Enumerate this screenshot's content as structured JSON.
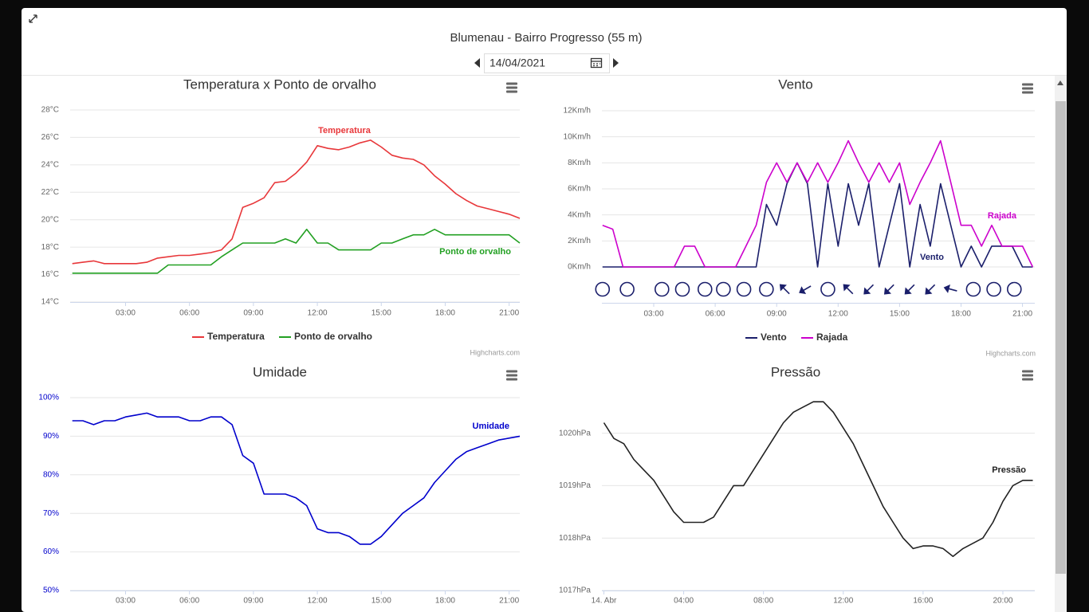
{
  "header": {
    "title": "Blumenau - Bairro Progresso (55 m)",
    "date": "14/04/2021"
  },
  "chart_data": [
    {
      "type": "line",
      "title": "Temperatura x Ponto de orvalho",
      "legend": true,
      "credits": "Highcharts.com",
      "xlim": [
        0.4,
        21.5
      ],
      "ylim": [
        14,
        28
      ],
      "grid": true,
      "xticks": [
        {
          "value": 3,
          "label": "03:00"
        },
        {
          "value": 6,
          "label": "06:00"
        },
        {
          "value": 9,
          "label": "09:00"
        },
        {
          "value": 12,
          "label": "12:00"
        },
        {
          "value": 15,
          "label": "15:00"
        },
        {
          "value": 18,
          "label": "18:00"
        },
        {
          "value": 21,
          "label": "21:00"
        }
      ],
      "yticks": [
        {
          "value": 14,
          "label": "14°C"
        },
        {
          "value": 16,
          "label": "16°C"
        },
        {
          "value": 18,
          "label": "18°C"
        },
        {
          "value": 20,
          "label": "20°C"
        },
        {
          "value": 22,
          "label": "22°C"
        },
        {
          "value": 24,
          "label": "24°C"
        },
        {
          "value": 26,
          "label": "26°C"
        },
        {
          "value": 28,
          "label": "28°C"
        }
      ],
      "x": [
        0.5,
        1,
        1.5,
        2,
        2.5,
        3,
        3.5,
        4,
        4.5,
        5,
        5.5,
        6,
        6.5,
        7,
        7.5,
        8,
        8.5,
        9,
        9.5,
        10,
        10.5,
        11,
        11.5,
        12,
        12.5,
        13,
        13.5,
        14,
        14.5,
        15,
        15.5,
        16,
        16.5,
        17,
        17.5,
        18,
        18.5,
        19,
        19.5,
        20,
        20.5,
        21,
        21.5
      ],
      "series": [
        {
          "name": "Temperatura",
          "color": "#e8373a",
          "values": [
            16.8,
            16.9,
            17.0,
            16.8,
            16.8,
            16.8,
            16.8,
            16.9,
            17.2,
            17.3,
            17.4,
            17.4,
            17.5,
            17.6,
            17.8,
            18.6,
            20.9,
            21.2,
            21.6,
            22.7,
            22.8,
            23.4,
            24.2,
            25.4,
            25.2,
            25.1,
            25.3,
            25.6,
            25.8,
            25.3,
            24.7,
            24.5,
            24.4,
            24.0,
            23.2,
            22.6,
            21.9,
            21.4,
            21.0,
            20.8,
            20.6,
            20.4,
            20.1
          ]
        },
        {
          "name": "Ponto de orvalho",
          "color": "#22a022",
          "values": [
            16.1,
            16.1,
            16.1,
            16.1,
            16.1,
            16.1,
            16.1,
            16.1,
            16.1,
            16.7,
            16.7,
            16.7,
            16.7,
            16.7,
            17.3,
            17.8,
            18.3,
            18.3,
            18.3,
            18.3,
            18.6,
            18.3,
            19.3,
            18.3,
            18.3,
            17.8,
            17.8,
            17.8,
            17.8,
            18.3,
            18.3,
            18.6,
            18.9,
            18.9,
            19.3,
            18.9,
            18.9,
            18.9,
            18.9,
            18.9,
            18.9,
            18.9,
            18.3
          ]
        }
      ]
    },
    {
      "type": "line",
      "title": "Vento",
      "legend": true,
      "credits": "Highcharts.com",
      "xlim": [
        0.47,
        21.6
      ],
      "ylim": [
        0,
        12
      ],
      "grid": true,
      "xticks": [
        {
          "value": 3,
          "label": "03:00"
        },
        {
          "value": 6,
          "label": "06:00"
        },
        {
          "value": 9,
          "label": "09:00"
        },
        {
          "value": 12,
          "label": "12:00"
        },
        {
          "value": 15,
          "label": "15:00"
        },
        {
          "value": 18,
          "label": "18:00"
        },
        {
          "value": 21,
          "label": "21:00"
        }
      ],
      "yticks": [
        {
          "value": 0,
          "label": "0Km/h"
        },
        {
          "value": 2,
          "label": "2Km/h"
        },
        {
          "value": 4,
          "label": "4Km/h"
        },
        {
          "value": 6,
          "label": "6Km/h"
        },
        {
          "value": 8,
          "label": "8Km/h"
        },
        {
          "value": 10,
          "label": "10Km/h"
        },
        {
          "value": 12,
          "label": "12Km/h"
        }
      ],
      "x": [
        0.5,
        1,
        1.5,
        2,
        2.5,
        3,
        3.5,
        4,
        4.5,
        5,
        5.5,
        6,
        6.5,
        7,
        7.5,
        8,
        8.5,
        9,
        9.5,
        10,
        10.5,
        11,
        11.5,
        12,
        12.5,
        13,
        13.5,
        14,
        14.5,
        15,
        15.5,
        16,
        16.5,
        17,
        17.5,
        18,
        18.5,
        19,
        19.5,
        20,
        20.5,
        21,
        21.5
      ],
      "series": [
        {
          "name": "Vento",
          "color": "#1b1f6b",
          "values": [
            0,
            0,
            0,
            0,
            0,
            0,
            0,
            0,
            0,
            0,
            0,
            0,
            0,
            0,
            0,
            0,
            4.8,
            3.2,
            6.4,
            8.0,
            6.4,
            0,
            6.4,
            1.6,
            6.4,
            3.2,
            6.4,
            0,
            3.2,
            6.4,
            0,
            4.8,
            1.6,
            6.4,
            3.2,
            0,
            1.6,
            0,
            1.6,
            1.6,
            1.6,
            0,
            0
          ]
        },
        {
          "name": "Rajada",
          "color": "#cc00cc",
          "values": [
            3.2,
            2.9,
            0,
            0,
            0,
            0,
            0,
            0,
            1.6,
            1.6,
            0,
            0,
            0,
            0,
            1.6,
            3.2,
            6.5,
            8.0,
            6.5,
            8.0,
            6.5,
            8.0,
            6.5,
            8.0,
            9.7,
            8.0,
            6.5,
            8.0,
            6.5,
            8.0,
            4.8,
            6.5,
            8.0,
            9.7,
            6.5,
            3.2,
            3.2,
            1.6,
            3.2,
            1.6,
            1.6,
            1.6,
            0
          ]
        }
      ],
      "wind_direction": {
        "x": [
          0.5,
          1.7,
          3.4,
          4.4,
          5.5,
          6.4,
          7.4,
          8.5,
          9.4,
          10.4,
          11.5,
          12.5,
          13.5,
          14.5,
          15.5,
          16.5,
          17.5,
          18.6,
          19.6,
          20.6
        ],
        "values": [
          null,
          null,
          null,
          null,
          null,
          null,
          null,
          null,
          315,
          240,
          null,
          315,
          225,
          225,
          225,
          225,
          285,
          null,
          null,
          null
        ]
      }
    },
    {
      "type": "line",
      "title": "Umidade",
      "legend": false,
      "xlim": [
        0.4,
        21.5
      ],
      "ylim": [
        50,
        100
      ],
      "grid": true,
      "xticks": [
        {
          "value": 3,
          "label": "03:00"
        },
        {
          "value": 6,
          "label": "06:00"
        },
        {
          "value": 9,
          "label": "09:00"
        },
        {
          "value": 12,
          "label": "12:00"
        },
        {
          "value": 15,
          "label": "15:00"
        },
        {
          "value": 18,
          "label": "18:00"
        },
        {
          "value": 21,
          "label": "21:00"
        }
      ],
      "yticks": [
        {
          "value": 50,
          "label": "50%"
        },
        {
          "value": 60,
          "label": "60%"
        },
        {
          "value": 70,
          "label": "70%"
        },
        {
          "value": 80,
          "label": "80%"
        },
        {
          "value": 90,
          "label": "90%"
        },
        {
          "value": 100,
          "label": "100%"
        }
      ],
      "x": [
        0.5,
        1,
        1.5,
        2,
        2.5,
        3,
        3.5,
        4,
        4.5,
        5,
        5.5,
        6,
        6.5,
        7,
        7.5,
        8,
        8.5,
        9,
        9.5,
        10,
        10.5,
        11,
        11.5,
        12,
        12.5,
        13,
        13.5,
        14,
        14.5,
        15,
        15.5,
        16,
        16.5,
        17,
        17.5,
        18,
        18.5,
        19,
        19.5,
        20,
        20.5,
        21,
        21.5
      ],
      "series": [
        {
          "name": "Umidade",
          "color": "#0000cc",
          "values": [
            94,
            94,
            93,
            94,
            94,
            95,
            95.5,
            96,
            95,
            95,
            95,
            94,
            94,
            95,
            95,
            93,
            85,
            83,
            75,
            75,
            75,
            74,
            72,
            66,
            65,
            65,
            64,
            62,
            62,
            64,
            67,
            70,
            72,
            74,
            78,
            81,
            84,
            86,
            87,
            88,
            89,
            89.5,
            90
          ]
        }
      ]
    },
    {
      "type": "line",
      "title": "Pressão",
      "legend": false,
      "xlim": [
        -0.1,
        21.6
      ],
      "ylim": [
        1017,
        1020.8
      ],
      "grid": true,
      "xticks": [
        {
          "value": 0,
          "label": "14. Abr"
        },
        {
          "value": 4,
          "label": "04:00"
        },
        {
          "value": 8,
          "label": "08:00"
        },
        {
          "value": 12,
          "label": "12:00"
        },
        {
          "value": 16,
          "label": "16:00"
        },
        {
          "value": 20,
          "label": "20:00"
        }
      ],
      "yticks": [
        {
          "value": 1017,
          "label": "1017hPa"
        },
        {
          "value": 1018,
          "label": "1018hPa"
        },
        {
          "value": 1019,
          "label": "1019hPa"
        },
        {
          "value": 1020,
          "label": "1020hPa"
        }
      ],
      "x": [
        0,
        0.5,
        1,
        1.5,
        2,
        2.5,
        3,
        3.5,
        4,
        4.5,
        5,
        5.5,
        6,
        6.5,
        7,
        7.5,
        8,
        8.5,
        9,
        9.5,
        10,
        10.5,
        11,
        11.5,
        12,
        12.5,
        13,
        13.5,
        14,
        14.5,
        15,
        15.5,
        16,
        16.5,
        17,
        17.5,
        18,
        18.5,
        19,
        19.5,
        20,
        20.5,
        21,
        21.5
      ],
      "series": [
        {
          "name": "Pressão",
          "color": "#222222",
          "values": [
            1020.2,
            1019.9,
            1019.8,
            1019.5,
            1019.3,
            1019.1,
            1018.8,
            1018.5,
            1018.3,
            1018.3,
            1018.3,
            1018.4,
            1018.7,
            1019.0,
            1019.0,
            1019.3,
            1019.6,
            1019.9,
            1020.2,
            1020.4,
            1020.5,
            1020.6,
            1020.6,
            1020.4,
            1020.1,
            1019.8,
            1019.4,
            1019.0,
            1018.6,
            1018.3,
            1018.0,
            1017.8,
            1017.85,
            1017.85,
            1017.8,
            1017.65,
            1017.8,
            1017.9,
            1018.0,
            1018.3,
            1018.7,
            1019.0,
            1019.1,
            1019.1
          ]
        }
      ]
    }
  ]
}
